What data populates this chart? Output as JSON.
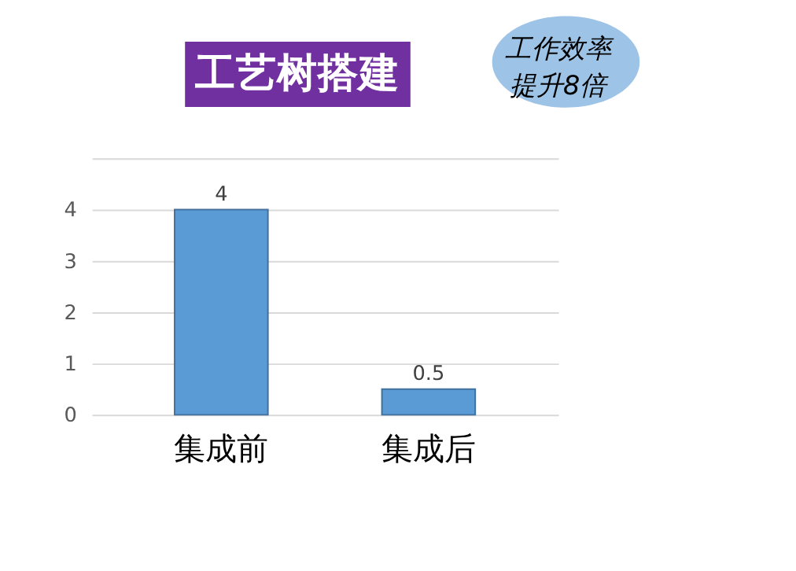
{
  "chart_data": {
    "type": "bar",
    "title": "工艺树搭建",
    "categories": [
      "集成前",
      "集成后"
    ],
    "values": [
      4,
      0.5
    ],
    "color": "#5b9bd5",
    "ylim": [
      0,
      5
    ],
    "yticks": [
      0,
      1,
      2,
      3,
      4,
      {
        "value": 5,
        "label": null
      }
    ],
    "grid": "y",
    "data_labels": true,
    "annotations": [
      "工作效率提升8倍"
    ]
  }
}
